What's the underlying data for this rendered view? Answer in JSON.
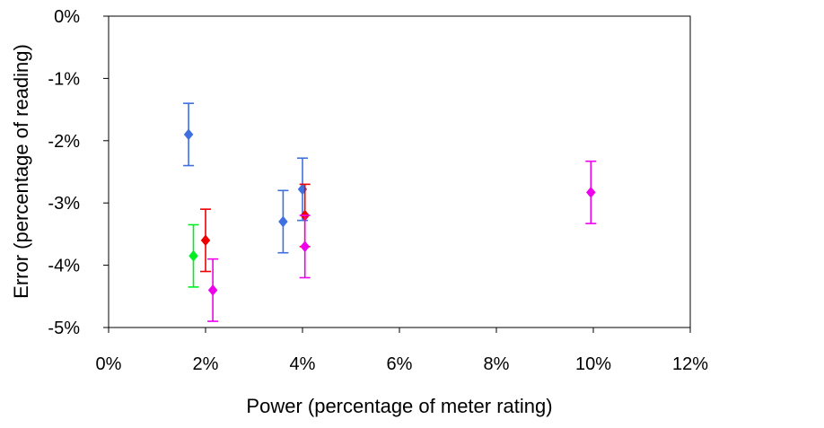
{
  "chart_data": {
    "type": "scatter",
    "title": "",
    "xlabel": "Power (percentage of meter rating)",
    "ylabel": "Error (percentage of reading)",
    "xlim": [
      0,
      12
    ],
    "ylim": [
      -5,
      0
    ],
    "x_ticks": [
      0,
      2,
      4,
      6,
      8,
      10,
      12
    ],
    "x_tick_labels": [
      "0%",
      "2%",
      "4%",
      "6%",
      "8%",
      "10%",
      "12%"
    ],
    "y_ticks": [
      0,
      -1,
      -2,
      -3,
      -4,
      -5
    ],
    "y_tick_labels": [
      "0%",
      "-1%",
      "-2%",
      "-3%",
      "-4%",
      "-5%"
    ],
    "grid": false,
    "legend": "none",
    "marker": "diamond",
    "error_bar_halfwidth": 0.5,
    "series": [
      {
        "color": "#3f6fe0",
        "points": [
          {
            "x": 1.65,
            "y": -1.9
          },
          {
            "x": 3.6,
            "y": -3.3
          },
          {
            "x": 4.0,
            "y": -2.78
          }
        ]
      },
      {
        "color": "#00ee22",
        "points": [
          {
            "x": 1.75,
            "y": -3.85
          }
        ]
      },
      {
        "color": "#ee0000",
        "points": [
          {
            "x": 2.0,
            "y": -3.6
          },
          {
            "x": 4.05,
            "y": -3.2
          }
        ]
      },
      {
        "color": "#ee00ee",
        "points": [
          {
            "x": 2.15,
            "y": -4.4
          },
          {
            "x": 4.05,
            "y": -3.7
          },
          {
            "x": 9.95,
            "y": -2.83
          }
        ]
      }
    ]
  }
}
